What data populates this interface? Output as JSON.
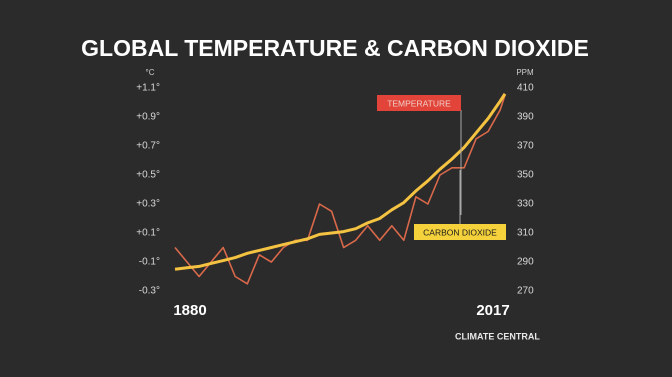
{
  "chart_data": {
    "type": "line",
    "title": "GLOBAL TEMPERATURE & CARBON DIOXIDE",
    "y_unit": "°C",
    "y2_unit": "PPM",
    "brand": "CLIMATE CENTRAL",
    "x": [
      1880,
      1885,
      1890,
      1895,
      1900,
      1905,
      1910,
      1915,
      1920,
      1925,
      1930,
      1935,
      1940,
      1945,
      1950,
      1955,
      1960,
      1965,
      1970,
      1975,
      1980,
      1985,
      1990,
      1995,
      2000,
      2005,
      2010,
      2015,
      2017
    ],
    "xlim": [
      1880,
      2017
    ],
    "xticks": [
      1880,
      2017
    ],
    "ylim": [
      -0.3,
      1.1
    ],
    "yticks": [
      {
        "value": 1.1,
        "label": "+1.1°"
      },
      {
        "value": 0.9,
        "label": "+0.9°"
      },
      {
        "value": 0.7,
        "label": "+0.7°"
      },
      {
        "value": 0.5,
        "label": "+0.5°"
      },
      {
        "value": 0.3,
        "label": "+0.3°"
      },
      {
        "value": 0.1,
        "label": "+0.1°"
      },
      {
        "value": -0.1,
        "label": "-0.1°"
      },
      {
        "value": -0.3,
        "label": "-0.3°"
      }
    ],
    "y2lim": [
      270,
      410
    ],
    "y2ticks": [
      410,
      390,
      370,
      350,
      330,
      310,
      290,
      270
    ],
    "grid": false,
    "series": [
      {
        "name": "TEMPERATURE",
        "color": "#d9694a",
        "values": [
          0.0,
          -0.1,
          -0.2,
          -0.1,
          0.0,
          -0.2,
          -0.25,
          -0.05,
          -0.1,
          0.0,
          0.05,
          0.05,
          0.3,
          0.25,
          0.0,
          0.05,
          0.15,
          0.05,
          0.15,
          0.05,
          0.35,
          0.3,
          0.5,
          0.55,
          0.55,
          0.75,
          0.8,
          0.95,
          1.05
        ]
      },
      {
        "name": "CARBON DIOXIDE",
        "color": "#f5c342",
        "axis": "y2",
        "values": [
          285,
          286,
          287,
          289,
          291,
          293,
          296,
          298,
          300,
          302,
          304,
          306,
          309,
          310,
          311,
          313,
          317,
          320,
          326,
          331,
          339,
          346,
          354,
          361,
          369,
          379,
          389,
          401,
          406
        ]
      }
    ]
  }
}
